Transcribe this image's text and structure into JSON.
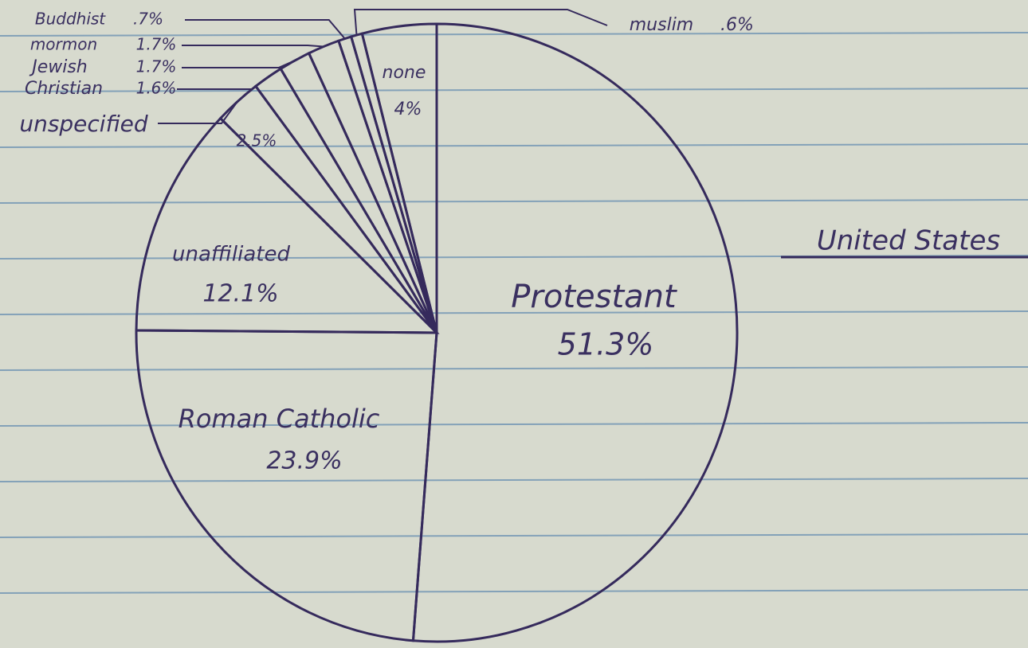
{
  "chart_data": {
    "type": "pie",
    "title": "United States",
    "categories": [
      "Protestant",
      "Roman Catholic",
      "unaffiliated",
      "unspecified",
      "Christian",
      "Jewish",
      "mormon",
      "Buddhist",
      "muslim",
      "none"
    ],
    "values": [
      51.3,
      23.9,
      12.1,
      2.5,
      1.6,
      1.7,
      1.7,
      0.7,
      0.6,
      4
    ],
    "value_labels": [
      "51.3%",
      "23.9%",
      "12.1%",
      "2.5%",
      "1.6%",
      "1.7%",
      "1.7%",
      ".7%",
      ".6%",
      "4%"
    ],
    "color": "none",
    "stroke": "#352a5c"
  }
}
